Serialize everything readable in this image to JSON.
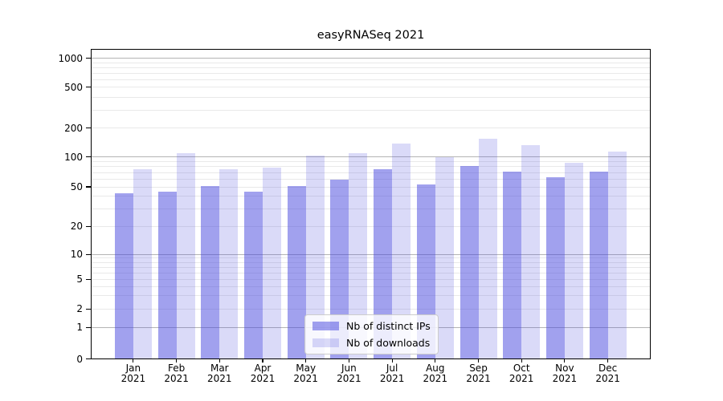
{
  "chart_data": {
    "type": "bar",
    "title": "easyRNASeq 2021",
    "months": [
      "Jan",
      "Feb",
      "Mar",
      "Apr",
      "May",
      "Jun",
      "Jul",
      "Aug",
      "Sep",
      "Oct",
      "Nov",
      "Dec"
    ],
    "year": "2021",
    "categories": [
      "Jan 2021",
      "Feb 2021",
      "Mar 2021",
      "Apr 2021",
      "May 2021",
      "Jun 2021",
      "Jul 2021",
      "Aug 2021",
      "Sep 2021",
      "Oct 2021",
      "Nov 2021",
      "Dec 2021"
    ],
    "series": [
      {
        "name": "Nb of distinct IPs",
        "key": "ips",
        "fill": "rgba(68,68,221,0.5)",
        "values": [
          43,
          45,
          51,
          45,
          51,
          59,
          75,
          53,
          82,
          71,
          63,
          71
        ]
      },
      {
        "name": "Nb of downloads",
        "key": "downloads",
        "fill": "rgba(68,68,221,0.2)",
        "values": [
          75,
          110,
          76,
          79,
          104,
          109,
          138,
          100,
          154,
          133,
          87,
          114
        ]
      }
    ],
    "y_ticks": [
      0,
      1,
      2,
      5,
      10,
      20,
      50,
      100,
      200,
      500,
      1000
    ],
    "y_tick_labels": [
      "0",
      "1",
      "2",
      "5",
      "10",
      "20",
      "50",
      "100",
      "200",
      "500",
      "1000"
    ],
    "y_scale": "log above 1, linear 0-1",
    "ylim": [
      0,
      1320
    ],
    "grid": true,
    "legend_position": "lower center",
    "colors": {
      "bar_base": "#4444dd",
      "grid_major": "#b4b4b4",
      "grid_minor": "#e9e9e9",
      "frame": "#000000",
      "legend_border": "#cccccc"
    }
  }
}
